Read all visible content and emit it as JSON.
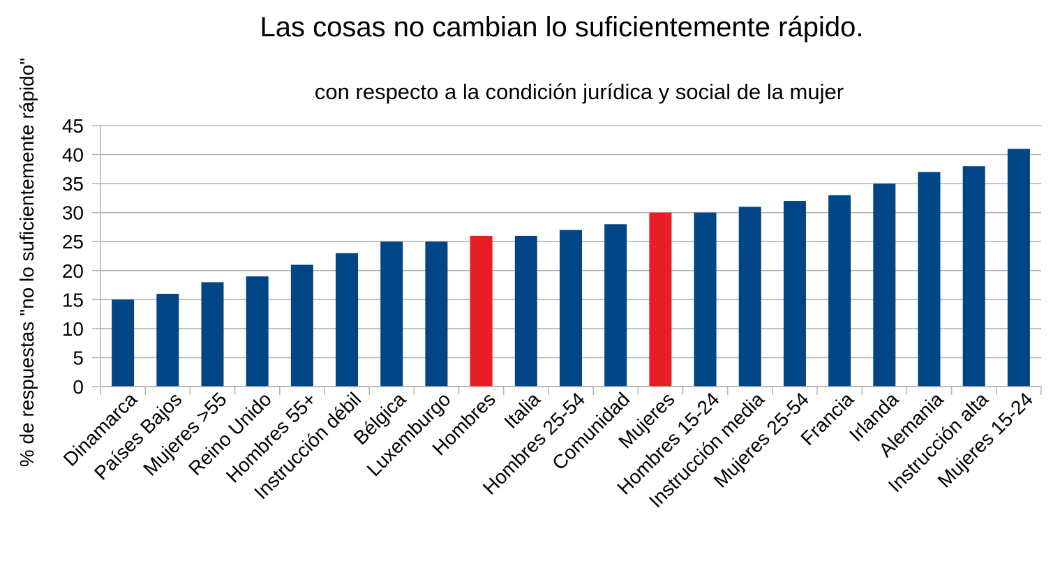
{
  "chart_data": {
    "type": "bar",
    "title": "Las cosas no cambian lo suficientemente rápido.",
    "subtitle": "con respecto a la condición jurídica y social de la mujer",
    "xlabel": "",
    "ylabel": "% de respuestas \"no lo suficientemente rápido\"",
    "ylim": [
      0,
      45
    ],
    "ytick_step": 5,
    "grid": true,
    "legend": "none",
    "categories": [
      "Dinamarca",
      "Países Bajos",
      "Mujeres >55",
      "Reino Unido",
      "Hombres 55+",
      "Instrucción débil",
      "Bélgica",
      "Luxemburgo",
      "Hombres",
      "Italia",
      "Hombres 25-54",
      "Comunidad",
      "Mujeres",
      "Hombres 15-24",
      "Instrucción media",
      "Mujeres 25-54",
      "Francia",
      "Irlanda",
      "Alemania",
      "Instrucción alta",
      "Mujeres 15-24"
    ],
    "values": [
      15,
      16,
      18,
      19,
      21,
      23,
      25,
      25,
      26,
      26,
      27,
      28,
      30,
      30,
      31,
      32,
      33,
      35,
      37,
      38,
      41
    ],
    "highlight": [
      "Hombres",
      "Mujeres"
    ],
    "colors": {
      "default": "#004586",
      "highlight": "#e91d25",
      "grid": "#b3b3b3",
      "axis": "#b3b3b3"
    }
  }
}
